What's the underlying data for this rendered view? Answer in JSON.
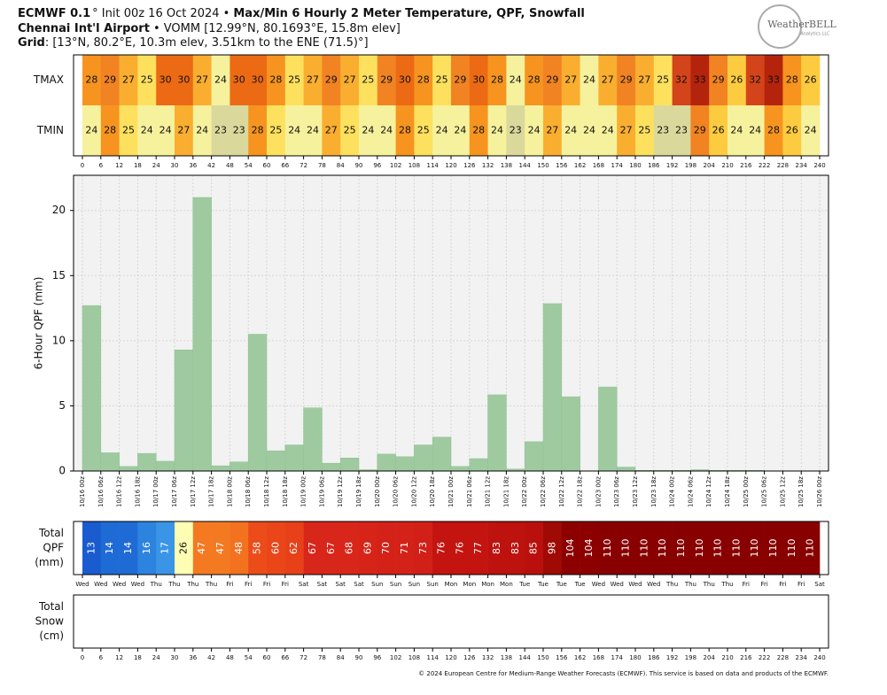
{
  "header": {
    "line1": {
      "model": "ECMWF 0.1",
      "init": "° Init 00z 16 Oct 2024 •",
      "product": "Max/Min 6 Hourly 2 Meter Temperature, QPF, Snowfall"
    },
    "line2": {
      "station": "Chennai Int'l Airport",
      "details": "• VOMM [12.99°N, 80.1693°E, 15.8m elev]"
    },
    "line3": {
      "key": "Grid",
      "details": ": [13°N, 80.2°E, 10.3m elev, 3.51km to the ENE (71.5)°]"
    },
    "logo": "WeatherBELL",
    "logo_sub": "Analytics LLC",
    "footer": "© 2024 European Centre for Medium-Range Weather Forecasts (ECMWF). This service is based on data and products of the ECMWF."
  },
  "chart_data": [
    {
      "type": "heatmap",
      "xlim": [
        0,
        240
      ],
      "xticks": [
        0,
        6,
        12,
        18,
        24,
        30,
        36,
        42,
        48,
        54,
        60,
        66,
        72,
        78,
        84,
        90,
        96,
        102,
        108,
        114,
        120,
        126,
        132,
        138,
        144,
        150,
        156,
        162,
        168,
        174,
        180,
        186,
        192,
        198,
        204,
        210,
        216,
        222,
        228,
        234,
        240
      ],
      "rows": [
        {
          "label": [
            "TMAX"
          ],
          "values": [
            28,
            29,
            27,
            25,
            30,
            30,
            27,
            24,
            30,
            30,
            28,
            25,
            27,
            29,
            27,
            25,
            29,
            30,
            28,
            25,
            29,
            30,
            28,
            24,
            28,
            29,
            27,
            24,
            27,
            29,
            27,
            25,
            32,
            33,
            29,
            26,
            32,
            33,
            28,
            26
          ]
        },
        {
          "label": [
            "TMIN"
          ],
          "values": [
            24,
            28,
            25,
            24,
            24,
            27,
            24,
            23,
            23,
            28,
            25,
            24,
            24,
            27,
            25,
            24,
            24,
            28,
            25,
            24,
            24,
            28,
            24,
            23,
            24,
            27,
            24,
            24,
            24,
            27,
            25,
            23,
            23,
            29,
            26,
            24,
            24,
            28,
            26,
            24
          ]
        }
      ],
      "colors": {
        "23": "#dbd89c",
        "24": "#f6f19c",
        "25": "#fde15e",
        "26": "#fdcb40",
        "27": "#f9ae30",
        "28": "#f6941f",
        "29": "#f18322",
        "30": "#ec6a14",
        "32": "#d4441a",
        "33": "#b4230c"
      }
    },
    {
      "type": "bar",
      "ylabel": "6-Hour QPF (mm)",
      "color": "#9fcaa0",
      "grid": true,
      "xlim": [
        0,
        240
      ],
      "ylim": [
        0,
        22.7
      ],
      "yticks": [
        0,
        5,
        10,
        15,
        20
      ],
      "xticks": [
        {
          "value": 0,
          "label": "10/16 00z"
        },
        {
          "value": 6,
          "label": "10/16 06z"
        },
        {
          "value": 12,
          "label": "10/16 12z"
        },
        {
          "value": 18,
          "label": "10/16 18z"
        },
        {
          "value": 24,
          "label": "10/17 00z"
        },
        {
          "value": 30,
          "label": "10/17 06z"
        },
        {
          "value": 36,
          "label": "10/17 12z"
        },
        {
          "value": 42,
          "label": "10/17 18z"
        },
        {
          "value": 48,
          "label": "10/18 00z"
        },
        {
          "value": 54,
          "label": "10/18 06z"
        },
        {
          "value": 60,
          "label": "10/18 12z"
        },
        {
          "value": 66,
          "label": "10/18 18z"
        },
        {
          "value": 72,
          "label": "10/19 00z"
        },
        {
          "value": 78,
          "label": "10/19 06z"
        },
        {
          "value": 84,
          "label": "10/19 12z"
        },
        {
          "value": 90,
          "label": "10/19 18z"
        },
        {
          "value": 96,
          "label": "10/20 00z"
        },
        {
          "value": 102,
          "label": "10/20 06z"
        },
        {
          "value": 108,
          "label": "10/20 12z"
        },
        {
          "value": 114,
          "label": "10/20 18z"
        },
        {
          "value": 120,
          "label": "10/21 00z"
        },
        {
          "value": 126,
          "label": "10/21 06z"
        },
        {
          "value": 132,
          "label": "10/21 12z"
        },
        {
          "value": 138,
          "label": "10/21 18z"
        },
        {
          "value": 144,
          "label": "10/22 00z"
        },
        {
          "value": 150,
          "label": "10/22 06z"
        },
        {
          "value": 156,
          "label": "10/22 12z"
        },
        {
          "value": 162,
          "label": "10/22 18z"
        },
        {
          "value": 168,
          "label": "10/23 00z"
        },
        {
          "value": 174,
          "label": "10/23 06z"
        },
        {
          "value": 180,
          "label": "10/23 12z"
        },
        {
          "value": 186,
          "label": "10/23 18z"
        },
        {
          "value": 192,
          "label": "10/24 00z"
        },
        {
          "value": 198,
          "label": "10/24 06z"
        },
        {
          "value": 204,
          "label": "10/24 12z"
        },
        {
          "value": 210,
          "label": "10/24 18z"
        },
        {
          "value": 216,
          "label": "10/25 00z"
        },
        {
          "value": 222,
          "label": "10/25 06z"
        },
        {
          "value": 228,
          "label": "10/25 12z"
        },
        {
          "value": 234,
          "label": "10/25 18z"
        },
        {
          "value": 240,
          "label": "10/26 00z"
        }
      ],
      "values": [
        12.7,
        1.4,
        0.35,
        1.35,
        0.75,
        9.3,
        21.0,
        0.4,
        0.7,
        10.5,
        1.55,
        2.0,
        4.85,
        0.6,
        1.0,
        0.1,
        1.3,
        1.1,
        2.0,
        2.6,
        0.35,
        0.95,
        5.85,
        0.15,
        2.25,
        12.85,
        5.7,
        0,
        6.45,
        0.3,
        0.05,
        0.05,
        0.05,
        0.1,
        0.05,
        0.05,
        0.05,
        0,
        0,
        0
      ]
    },
    {
      "type": "heatmap",
      "xlim": [
        0,
        240
      ],
      "xticks": [
        {
          "value": 0,
          "label": "Wed"
        },
        {
          "value": 6,
          "label": "Wed"
        },
        {
          "value": 12,
          "label": "Wed"
        },
        {
          "value": 18,
          "label": "Wed"
        },
        {
          "value": 24,
          "label": "Thu"
        },
        {
          "value": 30,
          "label": "Thu"
        },
        {
          "value": 36,
          "label": "Thu"
        },
        {
          "value": 42,
          "label": "Thu"
        },
        {
          "value": 48,
          "label": "Fri"
        },
        {
          "value": 54,
          "label": "Fri"
        },
        {
          "value": 60,
          "label": "Fri"
        },
        {
          "value": 66,
          "label": "Fri"
        },
        {
          "value": 72,
          "label": "Sat"
        },
        {
          "value": 78,
          "label": "Sat"
        },
        {
          "value": 84,
          "label": "Sat"
        },
        {
          "value": 90,
          "label": "Sat"
        },
        {
          "value": 96,
          "label": "Sun"
        },
        {
          "value": 102,
          "label": "Sun"
        },
        {
          "value": 108,
          "label": "Sun"
        },
        {
          "value": 114,
          "label": "Sun"
        },
        {
          "value": 120,
          "label": "Mon"
        },
        {
          "value": 126,
          "label": "Mon"
        },
        {
          "value": 132,
          "label": "Mon"
        },
        {
          "value": 138,
          "label": "Mon"
        },
        {
          "value": 144,
          "label": "Tue"
        },
        {
          "value": 150,
          "label": "Tue"
        },
        {
          "value": 156,
          "label": "Tue"
        },
        {
          "value": 162,
          "label": "Tue"
        },
        {
          "value": 168,
          "label": "Wed"
        },
        {
          "value": 174,
          "label": "Wed"
        },
        {
          "value": 180,
          "label": "Wed"
        },
        {
          "value": 186,
          "label": "Wed"
        },
        {
          "value": 192,
          "label": "Thu"
        },
        {
          "value": 198,
          "label": "Thu"
        },
        {
          "value": 204,
          "label": "Thu"
        },
        {
          "value": 210,
          "label": "Thu"
        },
        {
          "value": 216,
          "label": "Fri"
        },
        {
          "value": 222,
          "label": "Fri"
        },
        {
          "value": 228,
          "label": "Fri"
        },
        {
          "value": 234,
          "label": "Fri"
        },
        {
          "value": 240,
          "label": "Sat"
        }
      ],
      "rows": [
        {
          "label": [
            "Total",
            "QPF",
            "(mm)"
          ],
          "values": [
            13,
            14,
            14,
            16,
            17,
            26,
            47,
            47,
            48,
            58,
            60,
            62,
            67,
            67,
            68,
            69,
            70,
            71,
            73,
            76,
            76,
            77,
            83,
            83,
            85,
            98,
            104,
            104,
            110,
            110,
            110,
            110,
            110,
            110,
            110,
            110,
            110,
            110,
            110,
            110
          ]
        }
      ],
      "colors": {
        "13": "#1a5ccf",
        "14": "#1f6bd6",
        "16": "#2d84df",
        "17": "#3b95e6",
        "26": "#fdfdb4",
        "47": "#f47a22",
        "48": "#f27220",
        "58": "#ec4c1a",
        "60": "#ea4619",
        "62": "#e84018",
        "67": "#d8261a",
        "68": "#d8261a",
        "69": "#d62418",
        "70": "#d42218",
        "71": "#d42218",
        "73": "#d22018",
        "76": "#c41410",
        "77": "#c41410",
        "83": "#be120e",
        "85": "#ba100d",
        "98": "#a00a05",
        "104": "#8c0000",
        "110": "#880000"
      }
    },
    {
      "type": "heatmap",
      "xlim": [
        0,
        240
      ],
      "label": [
        "Total",
        "Snow",
        "(cm)"
      ],
      "xticks": [
        0,
        6,
        12,
        18,
        24,
        30,
        36,
        42,
        48,
        54,
        60,
        66,
        72,
        78,
        84,
        90,
        96,
        102,
        108,
        114,
        120,
        126,
        132,
        138,
        144,
        150,
        156,
        162,
        168,
        174,
        180,
        186,
        192,
        198,
        204,
        210,
        216,
        222,
        228,
        234,
        240
      ]
    }
  ]
}
